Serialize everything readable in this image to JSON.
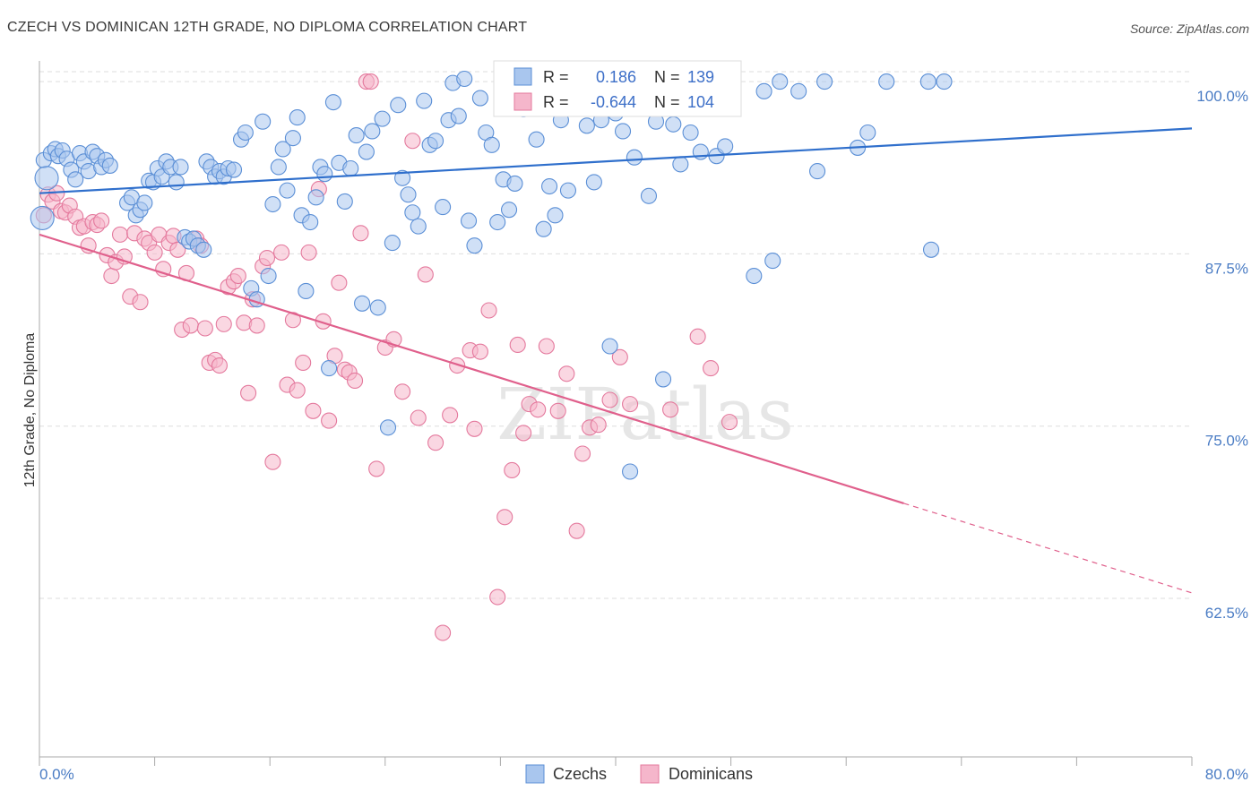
{
  "title": "CZECH VS DOMINICAN 12TH GRADE, NO DIPLOMA CORRELATION CHART",
  "source": "Source: ZipAtlas.com",
  "watermark": "ZIPatlas",
  "colors": {
    "blue_fill": "#a9c6ee",
    "blue_stroke": "#5b8fd6",
    "blue_line": "#2f6fcc",
    "pink_fill": "#f5b6cb",
    "pink_stroke": "#e4799d",
    "pink_line": "#e0608c",
    "grid": "#dddddd",
    "tick_label": "#4a7cc4"
  },
  "legend": {
    "rows": [
      {
        "r_label": "R = ",
        "r_value": "0.186",
        "n_label": "N = ",
        "n_value": "139"
      },
      {
        "r_label": "R = ",
        "r_value": "-0.644",
        "n_label": "N = ",
        "n_value": "104"
      }
    ]
  },
  "chart_data": {
    "type": "scatter",
    "title": "CZECH VS DOMINICAN 12TH GRADE, NO DIPLOMA CORRELATION CHART",
    "xlabel": "",
    "ylabel": "12th Grade, No Diploma",
    "xlim": [
      0,
      80
    ],
    "ylim": [
      51,
      101.5
    ],
    "x_tick_labels": [
      "0.0%",
      "80.0%"
    ],
    "y_ticks": [
      62.5,
      75.0,
      87.5,
      100.0
    ],
    "y_tick_labels": [
      "62.5%",
      "75.0%",
      "87.5%",
      "100.0%"
    ],
    "grid": true,
    "legend_position": "top-center",
    "series": [
      {
        "name": "Czechs",
        "R": 0.186,
        "N": 139,
        "trend": {
          "x0": 0,
          "y0": 91.9,
          "x1": 80,
          "y1": 96.6
        },
        "points": [
          [
            0.3,
            94.3
          ],
          [
            0.5,
            93.0
          ],
          [
            0.8,
            94.8
          ],
          [
            1.1,
            95.1
          ],
          [
            1.3,
            94.6
          ],
          [
            1.6,
            95.0
          ],
          [
            1.9,
            94.4
          ],
          [
            2.2,
            93.6
          ],
          [
            2.5,
            92.9
          ],
          [
            2.8,
            94.8
          ],
          [
            3.1,
            94.2
          ],
          [
            3.4,
            93.5
          ],
          [
            3.7,
            94.9
          ],
          [
            4.0,
            94.6
          ],
          [
            4.3,
            93.8
          ],
          [
            4.6,
            94.3
          ],
          [
            4.9,
            93.9
          ],
          [
            6.1,
            91.2
          ],
          [
            6.4,
            91.6
          ],
          [
            6.7,
            90.3
          ],
          [
            7.0,
            90.7
          ],
          [
            7.3,
            91.2
          ],
          [
            7.6,
            92.8
          ],
          [
            7.9,
            92.7
          ],
          [
            8.2,
            93.7
          ],
          [
            8.5,
            93.1
          ],
          [
            8.8,
            94.2
          ],
          [
            9.1,
            93.8
          ],
          [
            9.5,
            92.7
          ],
          [
            9.8,
            93.8
          ],
          [
            10.1,
            88.7
          ],
          [
            10.4,
            88.4
          ],
          [
            10.7,
            88.6
          ],
          [
            11.0,
            88.1
          ],
          [
            11.4,
            87.8
          ],
          [
            11.6,
            94.2
          ],
          [
            11.9,
            93.8
          ],
          [
            12.2,
            93.1
          ],
          [
            12.5,
            93.5
          ],
          [
            12.8,
            93.1
          ],
          [
            13.1,
            93.7
          ],
          [
            13.5,
            93.6
          ],
          [
            14.0,
            95.8
          ],
          [
            14.3,
            96.3
          ],
          [
            14.7,
            85.0
          ],
          [
            15.1,
            84.2
          ],
          [
            15.5,
            97.1
          ],
          [
            15.9,
            85.9
          ],
          [
            16.2,
            91.1
          ],
          [
            16.6,
            93.8
          ],
          [
            16.9,
            95.1
          ],
          [
            17.2,
            92.1
          ],
          [
            17.6,
            95.9
          ],
          [
            17.9,
            97.4
          ],
          [
            18.2,
            90.3
          ],
          [
            18.5,
            84.8
          ],
          [
            18.8,
            89.8
          ],
          [
            19.2,
            91.6
          ],
          [
            19.5,
            93.8
          ],
          [
            19.8,
            93.3
          ],
          [
            20.1,
            79.2
          ],
          [
            20.4,
            98.5
          ],
          [
            20.8,
            94.1
          ],
          [
            21.2,
            91.3
          ],
          [
            21.6,
            93.7
          ],
          [
            22.0,
            96.1
          ],
          [
            22.4,
            83.9
          ],
          [
            22.7,
            94.9
          ],
          [
            23.1,
            96.4
          ],
          [
            23.5,
            83.6
          ],
          [
            23.8,
            97.3
          ],
          [
            24.2,
            74.9
          ],
          [
            24.5,
            88.3
          ],
          [
            24.9,
            98.3
          ],
          [
            25.2,
            93.0
          ],
          [
            25.6,
            91.8
          ],
          [
            25.9,
            90.5
          ],
          [
            26.3,
            89.5
          ],
          [
            26.7,
            98.6
          ],
          [
            27.1,
            95.4
          ],
          [
            27.5,
            95.7
          ],
          [
            28.0,
            90.9
          ],
          [
            28.4,
            97.2
          ],
          [
            28.7,
            99.9
          ],
          [
            29.1,
            97.5
          ],
          [
            29.5,
            100.2
          ],
          [
            29.8,
            89.9
          ],
          [
            30.2,
            88.1
          ],
          [
            30.6,
            98.8
          ],
          [
            31.0,
            96.3
          ],
          [
            31.4,
            95.4
          ],
          [
            31.8,
            89.8
          ],
          [
            32.2,
            92.9
          ],
          [
            32.6,
            90.7
          ],
          [
            33.0,
            92.6
          ],
          [
            33.6,
            98.0
          ],
          [
            34.0,
            98.4
          ],
          [
            34.5,
            95.8
          ],
          [
            35.0,
            89.3
          ],
          [
            35.4,
            92.4
          ],
          [
            35.8,
            90.3
          ],
          [
            36.2,
            97.2
          ],
          [
            36.7,
            92.1
          ],
          [
            37.1,
            99.6
          ],
          [
            37.6,
            100.0
          ],
          [
            38.0,
            96.8
          ],
          [
            38.5,
            92.7
          ],
          [
            39.0,
            97.2
          ],
          [
            39.6,
            80.8
          ],
          [
            40.0,
            97.7
          ],
          [
            40.5,
            96.4
          ],
          [
            41.0,
            71.7
          ],
          [
            41.3,
            94.5
          ],
          [
            41.8,
            99.1
          ],
          [
            42.3,
            91.7
          ],
          [
            42.8,
            97.1
          ],
          [
            43.3,
            78.4
          ],
          [
            44.0,
            96.9
          ],
          [
            44.5,
            94.0
          ],
          [
            45.2,
            96.3
          ],
          [
            45.9,
            94.9
          ],
          [
            46.5,
            100.0
          ],
          [
            47.0,
            94.6
          ],
          [
            47.6,
            95.3
          ],
          [
            48.0,
            98.8
          ],
          [
            49.6,
            85.9
          ],
          [
            50.3,
            99.3
          ],
          [
            50.9,
            87.0
          ],
          [
            51.4,
            100.0
          ],
          [
            52.7,
            99.3
          ],
          [
            54.0,
            93.5
          ],
          [
            54.5,
            100.0
          ],
          [
            56.8,
            95.2
          ],
          [
            57.5,
            96.3
          ],
          [
            58.8,
            100.0
          ],
          [
            61.7,
            100.0
          ],
          [
            61.9,
            87.8
          ],
          [
            62.8,
            100.0
          ],
          [
            0.2,
            90.1
          ]
        ]
      },
      {
        "name": "Dominicans",
        "R": -0.644,
        "N": 104,
        "trend": {
          "x0": 0,
          "y0": 88.9,
          "x1": 60,
          "y1": 69.4
        },
        "trend_dashed": {
          "x0": 60,
          "y0": 69.4,
          "x1": 80,
          "y1": 62.9
        },
        "points": [
          [
            0.3,
            90.3
          ],
          [
            0.6,
            91.8
          ],
          [
            0.9,
            91.3
          ],
          [
            1.2,
            91.9
          ],
          [
            1.5,
            90.6
          ],
          [
            1.8,
            90.5
          ],
          [
            2.1,
            91.0
          ],
          [
            2.5,
            90.2
          ],
          [
            2.8,
            89.4
          ],
          [
            3.1,
            89.5
          ],
          [
            3.4,
            88.1
          ],
          [
            3.7,
            89.8
          ],
          [
            4.0,
            89.6
          ],
          [
            4.3,
            89.9
          ],
          [
            4.7,
            87.4
          ],
          [
            5.0,
            85.9
          ],
          [
            5.3,
            86.9
          ],
          [
            5.6,
            88.9
          ],
          [
            5.9,
            87.3
          ],
          [
            6.3,
            84.4
          ],
          [
            6.6,
            89.0
          ],
          [
            7.0,
            84.0
          ],
          [
            7.3,
            88.6
          ],
          [
            7.6,
            88.3
          ],
          [
            8.0,
            87.6
          ],
          [
            8.3,
            88.9
          ],
          [
            8.6,
            86.4
          ],
          [
            9.0,
            88.3
          ],
          [
            9.3,
            88.8
          ],
          [
            9.6,
            87.8
          ],
          [
            9.9,
            82.0
          ],
          [
            10.2,
            86.1
          ],
          [
            10.5,
            82.3
          ],
          [
            10.9,
            88.6
          ],
          [
            11.2,
            88.1
          ],
          [
            11.5,
            82.1
          ],
          [
            11.8,
            79.6
          ],
          [
            12.2,
            79.8
          ],
          [
            12.5,
            79.4
          ],
          [
            12.8,
            82.4
          ],
          [
            13.1,
            85.1
          ],
          [
            13.5,
            85.5
          ],
          [
            13.8,
            85.9
          ],
          [
            14.2,
            82.5
          ],
          [
            14.5,
            77.4
          ],
          [
            14.8,
            84.2
          ],
          [
            15.1,
            82.3
          ],
          [
            15.5,
            86.6
          ],
          [
            15.8,
            87.2
          ],
          [
            16.2,
            72.4
          ],
          [
            16.8,
            87.6
          ],
          [
            17.2,
            78.0
          ],
          [
            17.6,
            82.7
          ],
          [
            17.9,
            77.6
          ],
          [
            18.3,
            79.6
          ],
          [
            18.7,
            87.6
          ],
          [
            19.0,
            76.1
          ],
          [
            19.4,
            92.2
          ],
          [
            19.7,
            82.6
          ],
          [
            20.1,
            75.4
          ],
          [
            20.5,
            80.1
          ],
          [
            20.8,
            85.4
          ],
          [
            21.2,
            79.1
          ],
          [
            21.5,
            78.9
          ],
          [
            21.9,
            78.3
          ],
          [
            22.3,
            89.0
          ],
          [
            22.7,
            100.0
          ],
          [
            23.0,
            100.0
          ],
          [
            23.4,
            71.9
          ],
          [
            24.0,
            80.7
          ],
          [
            24.6,
            81.3
          ],
          [
            25.2,
            77.5
          ],
          [
            25.9,
            95.7
          ],
          [
            26.3,
            75.6
          ],
          [
            26.8,
            86.0
          ],
          [
            27.5,
            73.8
          ],
          [
            28.0,
            60.0
          ],
          [
            28.5,
            75.8
          ],
          [
            29.0,
            79.4
          ],
          [
            29.9,
            80.5
          ],
          [
            30.2,
            74.8
          ],
          [
            30.6,
            80.4
          ],
          [
            31.2,
            83.4
          ],
          [
            31.8,
            62.6
          ],
          [
            32.3,
            68.4
          ],
          [
            32.8,
            71.8
          ],
          [
            33.2,
            80.9
          ],
          [
            33.6,
            74.5
          ],
          [
            34.0,
            76.6
          ],
          [
            34.6,
            76.2
          ],
          [
            35.2,
            80.8
          ],
          [
            36.0,
            76.1
          ],
          [
            36.6,
            78.8
          ],
          [
            37.3,
            67.4
          ],
          [
            37.7,
            73.0
          ],
          [
            38.2,
            74.9
          ],
          [
            38.8,
            75.1
          ],
          [
            39.6,
            76.9
          ],
          [
            40.3,
            80.0
          ],
          [
            41.0,
            76.6
          ],
          [
            43.8,
            76.2
          ],
          [
            45.7,
            81.5
          ],
          [
            46.6,
            79.2
          ],
          [
            47.9,
            75.3
          ]
        ]
      }
    ]
  },
  "bottom_legend": [
    {
      "label": "Czechs"
    },
    {
      "label": "Dominicans"
    }
  ]
}
